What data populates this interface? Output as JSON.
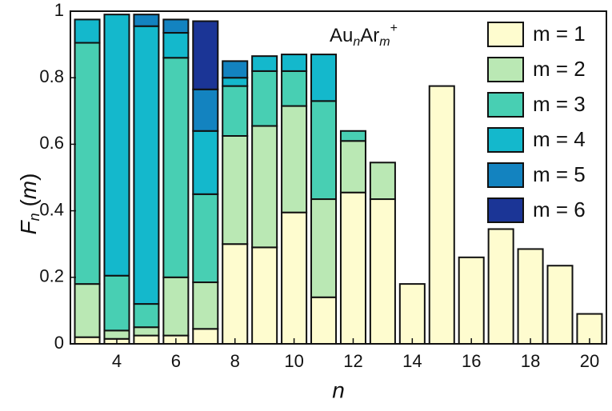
{
  "chart_data": {
    "type": "stacked_bar",
    "x": [
      3,
      4,
      5,
      6,
      7,
      8,
      9,
      10,
      11,
      12,
      13,
      14,
      15,
      16,
      17,
      18,
      19,
      20
    ],
    "series": [
      {
        "name": "m = 1",
        "color": "#fefccf",
        "values": [
          0.02,
          0.015,
          0.025,
          0.025,
          0.045,
          0.3,
          0.29,
          0.395,
          0.14,
          0.455,
          0.435,
          0.18,
          0.775,
          0.26,
          0.345,
          0.285,
          0.235,
          0.09
        ]
      },
      {
        "name": "m = 2",
        "color": "#bae8b4",
        "values": [
          0.16,
          0.025,
          0.025,
          0.175,
          0.14,
          0.325,
          0.365,
          0.32,
          0.295,
          0.155,
          0.11,
          null,
          null,
          null,
          null,
          null,
          null,
          null
        ]
      },
      {
        "name": "m = 3",
        "color": "#48cfb3",
        "values": [
          0.725,
          0.165,
          0.07,
          0.66,
          0.265,
          0.15,
          0.165,
          0.105,
          0.295,
          0.03,
          null,
          null,
          null,
          null,
          null,
          null,
          null,
          null
        ]
      },
      {
        "name": "m = 4",
        "color": "#14b8cc",
        "values": [
          0.07,
          0.785,
          0.835,
          0.075,
          0.19,
          0.025,
          0.045,
          0.05,
          0.14,
          null,
          null,
          null,
          null,
          null,
          null,
          null,
          null,
          null
        ]
      },
      {
        "name": "m = 5",
        "color": "#1383c0",
        "values": [
          null,
          null,
          0.035,
          0.04,
          0.125,
          0.05,
          null,
          null,
          null,
          null,
          null,
          null,
          null,
          null,
          null,
          null,
          null,
          null
        ]
      },
      {
        "name": "m = 6",
        "color": "#1b3596",
        "values": [
          null,
          null,
          null,
          null,
          0.205,
          null,
          null,
          null,
          null,
          null,
          null,
          null,
          null,
          null,
          null,
          null,
          null,
          null
        ]
      }
    ],
    "xlabel": "n",
    "ylabel": [
      "F",
      "n",
      " (",
      "m",
      ")"
    ],
    "annotation": [
      "Au",
      "n",
      "Ar",
      "m",
      "+"
    ],
    "xlim": [
      2.43,
      20.57
    ],
    "xticks": [
      4,
      6,
      8,
      10,
      12,
      14,
      16,
      18,
      20
    ],
    "ylim": [
      0,
      1
    ],
    "yticks": [
      0,
      0.2,
      0.4,
      0.6,
      0.8,
      1
    ],
    "legend": "upper right"
  }
}
